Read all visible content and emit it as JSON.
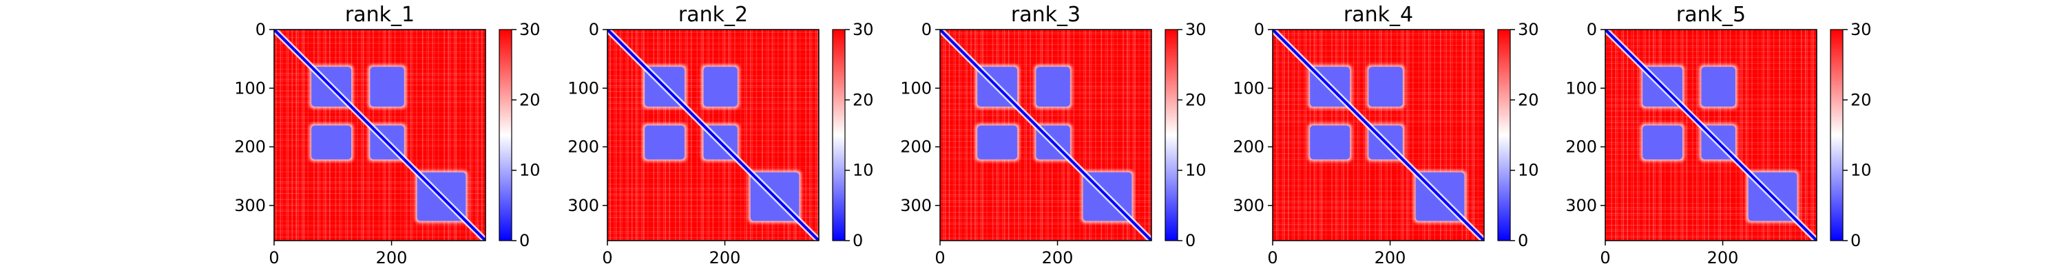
{
  "chart_data": [
    {
      "type": "heatmap",
      "title": "rank_1",
      "xlim": [
        0,
        360
      ],
      "ylim": [
        360,
        0
      ],
      "xticks": [
        "0",
        "200"
      ],
      "yticks": [
        "0",
        "100",
        "200",
        "300"
      ],
      "colorbar": {
        "min": 0,
        "max": 30,
        "ticks": [
          "0",
          "10",
          "20",
          "30"
        ],
        "colormap": [
          "#0000ff",
          "#ffffff",
          "#ff0000"
        ]
      },
      "blocks": [
        {
          "x": [
            60,
            135
          ],
          "y": [
            60,
            135
          ],
          "value": 6
        },
        {
          "x": [
            160,
            225
          ],
          "y": [
            60,
            135
          ],
          "value": 6
        },
        {
          "x": [
            60,
            135
          ],
          "y": [
            160,
            225
          ],
          "value": 6
        },
        {
          "x": [
            160,
            225
          ],
          "y": [
            160,
            225
          ],
          "value": 6
        },
        {
          "x": [
            240,
            330
          ],
          "y": [
            240,
            330
          ],
          "value": 6
        }
      ]
    },
    {
      "type": "heatmap",
      "title": "rank_2",
      "xlim": [
        0,
        360
      ],
      "ylim": [
        360,
        0
      ],
      "xticks": [
        "0",
        "200"
      ],
      "yticks": [
        "0",
        "100",
        "200",
        "300"
      ],
      "colorbar": {
        "min": 0,
        "max": 30,
        "ticks": [
          "0",
          "10",
          "20",
          "30"
        ],
        "colormap": [
          "#0000ff",
          "#ffffff",
          "#ff0000"
        ]
      },
      "blocks": [
        {
          "x": [
            60,
            135
          ],
          "y": [
            60,
            135
          ],
          "value": 6
        },
        {
          "x": [
            160,
            225
          ],
          "y": [
            60,
            135
          ],
          "value": 6
        },
        {
          "x": [
            60,
            135
          ],
          "y": [
            160,
            225
          ],
          "value": 6
        },
        {
          "x": [
            160,
            225
          ],
          "y": [
            160,
            225
          ],
          "value": 6
        },
        {
          "x": [
            240,
            330
          ],
          "y": [
            240,
            330
          ],
          "value": 6
        }
      ]
    },
    {
      "type": "heatmap",
      "title": "rank_3",
      "xlim": [
        0,
        360
      ],
      "ylim": [
        360,
        0
      ],
      "xticks": [
        "0",
        "200"
      ],
      "yticks": [
        "0",
        "100",
        "200",
        "300"
      ],
      "colorbar": {
        "min": 0,
        "max": 30,
        "ticks": [
          "0",
          "10",
          "20",
          "30"
        ],
        "colormap": [
          "#0000ff",
          "#ffffff",
          "#ff0000"
        ]
      },
      "blocks": [
        {
          "x": [
            60,
            135
          ],
          "y": [
            60,
            135
          ],
          "value": 6
        },
        {
          "x": [
            160,
            225
          ],
          "y": [
            60,
            135
          ],
          "value": 6
        },
        {
          "x": [
            60,
            135
          ],
          "y": [
            160,
            225
          ],
          "value": 6
        },
        {
          "x": [
            160,
            225
          ],
          "y": [
            160,
            225
          ],
          "value": 6
        },
        {
          "x": [
            240,
            330
          ],
          "y": [
            240,
            330
          ],
          "value": 6
        }
      ]
    },
    {
      "type": "heatmap",
      "title": "rank_4",
      "xlim": [
        0,
        360
      ],
      "ylim": [
        360,
        0
      ],
      "xticks": [
        "0",
        "200"
      ],
      "yticks": [
        "0",
        "100",
        "200",
        "300"
      ],
      "colorbar": {
        "min": 0,
        "max": 30,
        "ticks": [
          "0",
          "10",
          "20",
          "30"
        ],
        "colormap": [
          "#0000ff",
          "#ffffff",
          "#ff0000"
        ]
      },
      "blocks": [
        {
          "x": [
            60,
            135
          ],
          "y": [
            60,
            135
          ],
          "value": 6
        },
        {
          "x": [
            160,
            225
          ],
          "y": [
            60,
            135
          ],
          "value": 6
        },
        {
          "x": [
            60,
            135
          ],
          "y": [
            160,
            225
          ],
          "value": 6
        },
        {
          "x": [
            160,
            225
          ],
          "y": [
            160,
            225
          ],
          "value": 6
        },
        {
          "x": [
            240,
            330
          ],
          "y": [
            240,
            330
          ],
          "value": 6
        }
      ]
    },
    {
      "type": "heatmap",
      "title": "rank_5",
      "xlim": [
        0,
        360
      ],
      "ylim": [
        360,
        0
      ],
      "xticks": [
        "0",
        "200"
      ],
      "yticks": [
        "0",
        "100",
        "200",
        "300"
      ],
      "colorbar": {
        "min": 0,
        "max": 30,
        "ticks": [
          "0",
          "10",
          "20",
          "30"
        ],
        "colormap": [
          "#0000ff",
          "#ffffff",
          "#ff0000"
        ]
      },
      "blocks": [
        {
          "x": [
            60,
            135
          ],
          "y": [
            60,
            135
          ],
          "value": 6
        },
        {
          "x": [
            160,
            225
          ],
          "y": [
            60,
            135
          ],
          "value": 6
        },
        {
          "x": [
            60,
            135
          ],
          "y": [
            160,
            225
          ],
          "value": 6
        },
        {
          "x": [
            160,
            225
          ],
          "y": [
            160,
            225
          ],
          "value": 6
        },
        {
          "x": [
            240,
            330
          ],
          "y": [
            240,
            330
          ],
          "value": 6
        }
      ]
    }
  ]
}
